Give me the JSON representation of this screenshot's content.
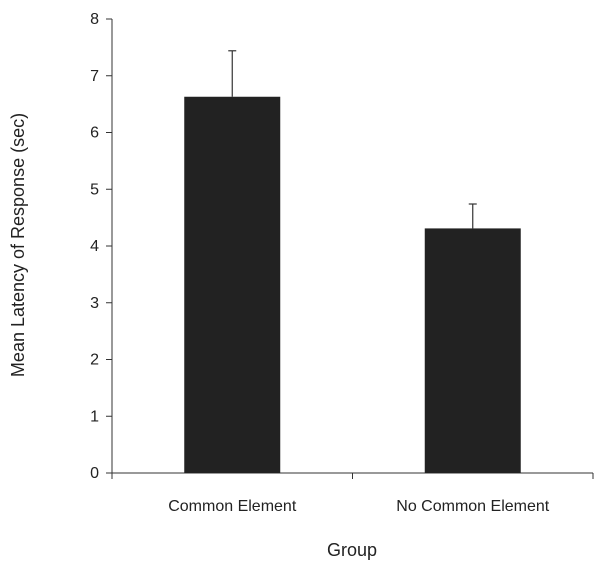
{
  "chart_data": {
    "type": "bar",
    "categories": [
      "Common Element",
      "No Common Element"
    ],
    "values": [
      6.63,
      4.31
    ],
    "error_upper": [
      7.44,
      4.74
    ],
    "xlabel": "Group",
    "ylabel": "Mean Latency of Response (sec)",
    "ylim": [
      0,
      8
    ],
    "yticks": [
      0,
      1,
      2,
      3,
      4,
      5,
      6,
      7,
      8
    ],
    "grid": false,
    "bar_color": "#222222"
  }
}
